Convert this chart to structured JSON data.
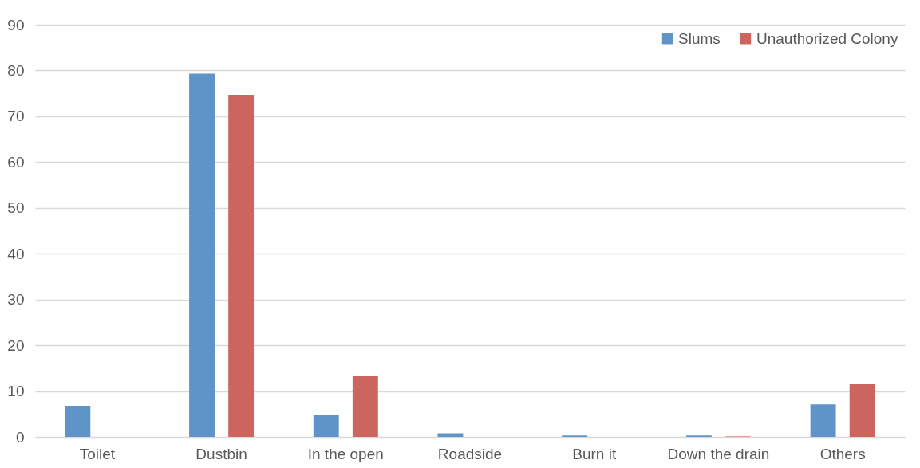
{
  "chart_data": {
    "type": "bar",
    "categories": [
      "Toilet",
      "Dustbin",
      "In the open",
      "Roadside",
      "Burn it",
      "Down the drain",
      "Others"
    ],
    "series": [
      {
        "name": "Slums",
        "color": "#5f94c8",
        "values": [
          6.8,
          79.3,
          4.7,
          0.8,
          0.3,
          0.3,
          7.1
        ]
      },
      {
        "name": "Unauthorized Colony",
        "color": "#cc655d",
        "values": [
          0,
          74.7,
          13.3,
          0,
          0,
          0.1,
          11.5
        ]
      }
    ],
    "ylim": [
      0,
      90
    ],
    "yticks": [
      0,
      10,
      20,
      30,
      40,
      50,
      60,
      70,
      80,
      90
    ],
    "grid": "y",
    "legend": "top right"
  }
}
